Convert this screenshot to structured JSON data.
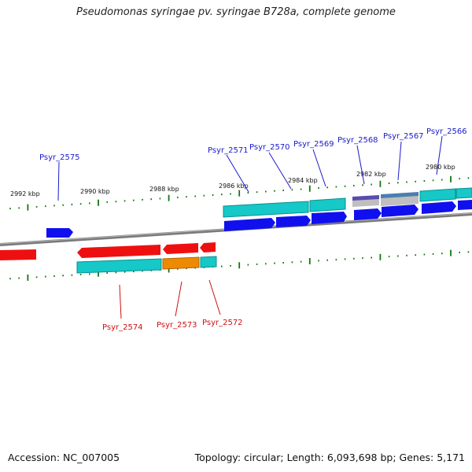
{
  "title": "Pseudomonas syringae pv. syringae B728a, complete genome",
  "footer": {
    "accession": "Accession: NC_007005",
    "summary": "Topology: circular; Length: 6,093,698 bp; Genes: 5,171"
  },
  "colors": {
    "forward_gene": "#1010ee",
    "reverse_gene": "#ee1010",
    "cds_cyan": "#16c8c8",
    "cds_orange": "#ee8a00",
    "backbone": "#7a7a7a",
    "tick": "#117711",
    "forward_label": "#1a1acc",
    "reverse_label": "#cc1111",
    "gene_purple": "#5a4ab0",
    "gene_steel": "#4a7fb0"
  },
  "ruler_labels": [
    "2992 kbp",
    "2990 kbp",
    "2988 kbp",
    "2986 kbp",
    "2984 kbp",
    "2982 kbp",
    "2980 kbp"
  ],
  "gene_labels": {
    "forward": [
      "Psyr_2575",
      "Psyr_2571",
      "Psyr_2570",
      "Psyr_2569",
      "Psyr_2568",
      "Psyr_2567",
      "Psyr_2566"
    ],
    "reverse": [
      "Psyr_2574",
      "Psyr_2573",
      "Psyr_2572"
    ]
  }
}
